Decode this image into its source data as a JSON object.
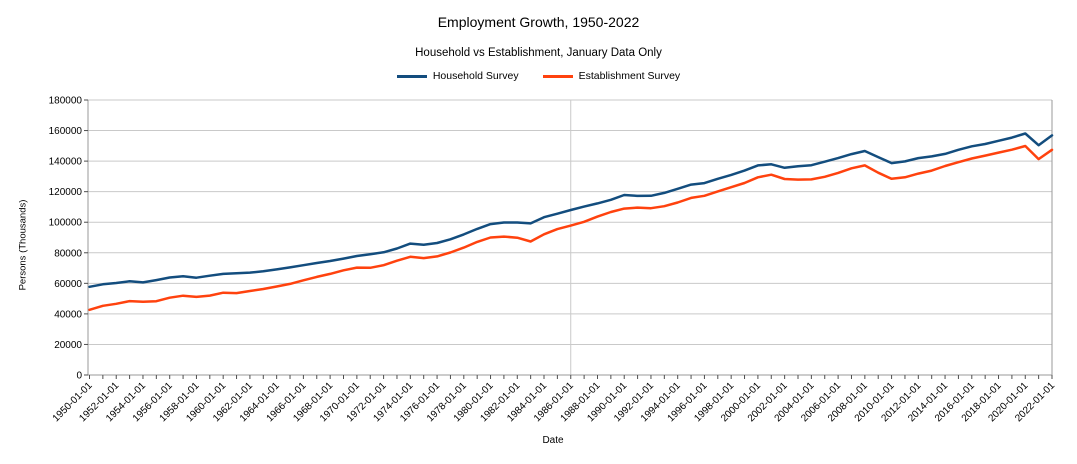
{
  "chart": {
    "title": "Employment Growth, 1950-2022",
    "subtitle": "Household vs Establishment, January Data Only",
    "x_axis_title": "Date",
    "y_axis_title": "Persons (Thousands)",
    "colors": {
      "household": "#134d7e",
      "establishment": "#ff420e",
      "gridline": "#c9c9c9",
      "axis_line": "#9a9a9a",
      "tick_mark": "#4d4d4d",
      "text": "#000000",
      "background": "#ffffff"
    },
    "legend": [
      {
        "label": "Household Survey",
        "color_key": "household"
      },
      {
        "label": "Establishment Survey",
        "color_key": "establishment"
      }
    ]
  },
  "chart_data": {
    "type": "line",
    "title": "Employment Growth, 1950-2022",
    "subtitle": "Household vs Establishment, January Data Only",
    "xlabel": "Date",
    "ylabel": "Persons (Thousands)",
    "ylim": [
      0,
      180000
    ],
    "y_tick_step": 20000,
    "y_tick_labels": [
      "0",
      "20000",
      "40000",
      "60000",
      "80000",
      "100000",
      "120000",
      "140000",
      "160000",
      "180000"
    ],
    "grid": "horizontal-major, vertical line at 1986-01-01 and plot frame edges",
    "legend_position": "top-center",
    "x_years": [
      1950,
      1951,
      1952,
      1953,
      1954,
      1955,
      1956,
      1957,
      1958,
      1959,
      1960,
      1961,
      1962,
      1963,
      1964,
      1965,
      1966,
      1967,
      1968,
      1969,
      1970,
      1971,
      1972,
      1973,
      1974,
      1975,
      1976,
      1977,
      1978,
      1979,
      1980,
      1981,
      1982,
      1983,
      1984,
      1985,
      1986,
      1987,
      1988,
      1989,
      1990,
      1991,
      1992,
      1993,
      1994,
      1995,
      1996,
      1997,
      1998,
      1999,
      2000,
      2001,
      2002,
      2003,
      2004,
      2005,
      2006,
      2007,
      2008,
      2009,
      2010,
      2011,
      2012,
      2013,
      2014,
      2015,
      2016,
      2017,
      2018,
      2019,
      2020,
      2021,
      2022
    ],
    "x_tick_labels": [
      "1950-01-01",
      "1952-01-01",
      "1954-01-01",
      "1956-01-01",
      "1958-01-01",
      "1960-01-01",
      "1962-01-01",
      "1964-01-01",
      "1966-01-01",
      "1968-01-01",
      "1970-01-01",
      "1972-01-01",
      "1974-01-01",
      "1976-01-01",
      "1978-01-01",
      "1980-01-01",
      "1982-01-01",
      "1984-01-01",
      "1986-01-01",
      "1988-01-01",
      "1990-01-01",
      "1992-01-01",
      "1994-01-01",
      "1996-01-01",
      "1998-01-01",
      "2000-01-01",
      "2002-01-01",
      "2004-01-01",
      "2006-01-01",
      "2008-01-01",
      "2010-01-01",
      "2012-01-01",
      "2014-01-01",
      "2016-01-01",
      "2018-01-01",
      "2020-01-01",
      "2022-01-01"
    ],
    "series": [
      {
        "name": "Household Survey",
        "color_key": "household",
        "values": [
          57700,
          59400,
          60200,
          61300,
          60600,
          62100,
          63800,
          64600,
          63700,
          65000,
          66200,
          66600,
          67000,
          67900,
          69100,
          70400,
          71900,
          73300,
          74600,
          76200,
          77900,
          79100,
          80300,
          82800,
          86000,
          85200,
          86400,
          88800,
          92000,
          95600,
          98800,
          99800,
          99800,
          99200,
          103300,
          105600,
          108000,
          110200,
          112300,
          114700,
          117800,
          117200,
          117300,
          119200,
          121900,
          124600,
          125600,
          128400,
          131000,
          133800,
          137200,
          137900,
          135600,
          136700,
          137300,
          139600,
          142000,
          144600,
          146600,
          142600,
          138700,
          139800,
          142000,
          143100,
          144700,
          147400,
          149700,
          151200,
          153300,
          155400,
          158100,
          150400,
          156800
        ]
      },
      {
        "name": "Establishment Survey",
        "color_key": "establishment",
        "values": [
          42700,
          45300,
          46600,
          48400,
          47900,
          48300,
          50600,
          51900,
          51100,
          52000,
          53900,
          53600,
          55000,
          56300,
          57900,
          59600,
          62000,
          64200,
          66200,
          68500,
          70300,
          70200,
          71900,
          74800,
          77400,
          76500,
          77600,
          80200,
          83400,
          87100,
          90000,
          90600,
          89900,
          87400,
          92100,
          95500,
          97800,
          100300,
          103700,
          106700,
          108900,
          109600,
          109200,
          110500,
          112900,
          115900,
          117300,
          120200,
          122900,
          125700,
          129400,
          131100,
          128300,
          127900,
          128000,
          129700,
          132300,
          135300,
          137200,
          132400,
          128400,
          129400,
          131800,
          133800,
          136800,
          139300,
          141700,
          143600,
          145600,
          147500,
          149900,
          141300,
          147400
        ]
      }
    ]
  }
}
